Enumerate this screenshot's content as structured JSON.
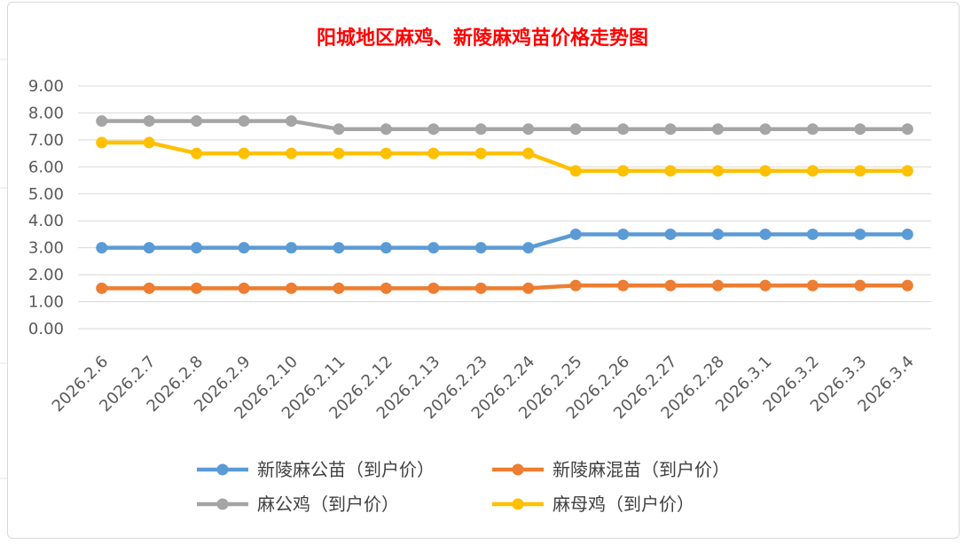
{
  "chart_data": {
    "type": "line",
    "title": "阳城地区麻鸡、新陵麻鸡苗价格走势图",
    "xlabel": "",
    "ylabel": "",
    "categories": [
      "2026.2.6",
      "2026.2.7",
      "2026.2.8",
      "2026.2.9",
      "2026.2.10",
      "2026.2.11",
      "2026.2.12",
      "2026.2.13",
      "2026.2.23",
      "2026.2.24",
      "2026.2.25",
      "2026.2.26",
      "2026.2.27",
      "2026.2.28",
      "2026.3.1",
      "2026.3.2",
      "2026.3.3",
      "2026.3.4"
    ],
    "ylim": [
      0,
      9
    ],
    "yticks": [
      "0.00",
      "1.00",
      "2.00",
      "3.00",
      "4.00",
      "5.00",
      "6.00",
      "7.00",
      "8.00",
      "9.00"
    ],
    "grid": "horizontal",
    "legend_position": "bottom",
    "series": [
      {
        "name": "新陵麻公苗（到户价）",
        "color": "#5b9bd5",
        "values": [
          3.0,
          3.0,
          3.0,
          3.0,
          3.0,
          3.0,
          3.0,
          3.0,
          3.0,
          3.0,
          3.5,
          3.5,
          3.5,
          3.5,
          3.5,
          3.5,
          3.5,
          3.5
        ]
      },
      {
        "name": "新陵麻混苗（到户价）",
        "color": "#ed7d31",
        "values": [
          1.5,
          1.5,
          1.5,
          1.5,
          1.5,
          1.5,
          1.5,
          1.5,
          1.5,
          1.5,
          1.6,
          1.6,
          1.6,
          1.6,
          1.6,
          1.6,
          1.6,
          1.6
        ]
      },
      {
        "name": "麻公鸡（到户价）",
        "color": "#a5a5a5",
        "values": [
          7.7,
          7.7,
          7.7,
          7.7,
          7.7,
          7.4,
          7.4,
          7.4,
          7.4,
          7.4,
          7.4,
          7.4,
          7.4,
          7.4,
          7.4,
          7.4,
          7.4,
          7.4
        ]
      },
      {
        "name": "麻母鸡（到户价）",
        "color": "#ffc000",
        "values": [
          6.9,
          6.9,
          6.5,
          6.5,
          6.5,
          6.5,
          6.5,
          6.5,
          6.5,
          6.5,
          5.85,
          5.85,
          5.85,
          5.85,
          5.85,
          5.85,
          5.85,
          5.85
        ]
      }
    ]
  }
}
